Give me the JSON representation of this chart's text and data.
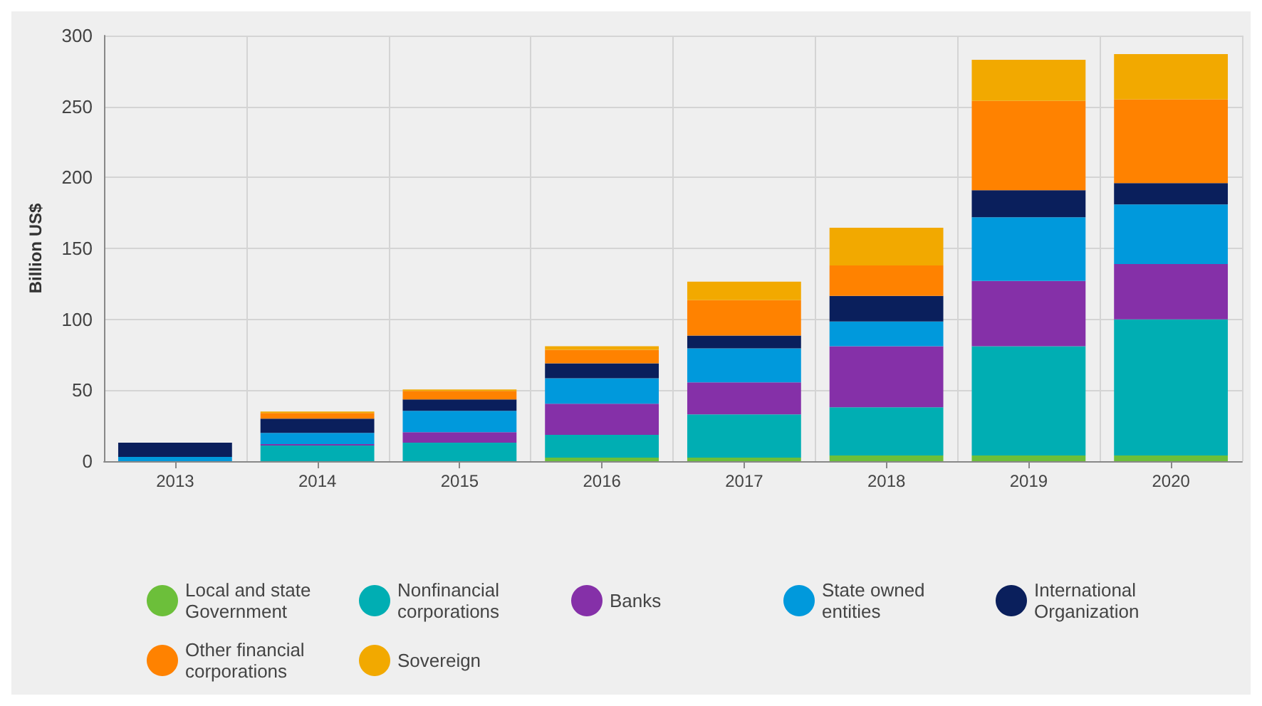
{
  "chart_data": {
    "type": "bar",
    "stacked": true,
    "ylabel": "Billion US$",
    "categories": [
      "2013",
      "2014",
      "2015",
      "2016",
      "2017",
      "2018",
      "2019",
      "2020"
    ],
    "series": [
      {
        "name": "Local and state Government",
        "color": "#6cbf3a",
        "values": [
          0,
          0,
          0,
          2.5,
          2.5,
          4,
          4,
          4
        ]
      },
      {
        "name": "Nonfinancial corporations",
        "color": "#00aeb3",
        "values": [
          0,
          11,
          13,
          16,
          30.5,
          34,
          77,
          96
        ]
      },
      {
        "name": "Banks",
        "color": "#8530a8",
        "values": [
          0,
          1,
          7.5,
          22,
          22.5,
          43,
          46,
          39
        ]
      },
      {
        "name": "State owned entities",
        "color": "#0099dc",
        "values": [
          3,
          8,
          15,
          18,
          24,
          17.5,
          45,
          42
        ]
      },
      {
        "name": "International Organization",
        "color": "#0a1f5c",
        "values": [
          10,
          10,
          8,
          10.5,
          9,
          18,
          19,
          15
        ]
      },
      {
        "name": "Other financial corporations",
        "color": "#ff8200",
        "values": [
          0,
          4,
          6,
          9.5,
          25,
          21.5,
          63,
          59
        ]
      },
      {
        "name": "Sovereign",
        "color": "#f2a900",
        "values": [
          0,
          1,
          1,
          2.5,
          13,
          26.5,
          29,
          32
        ]
      }
    ],
    "ylim": [
      0,
      300
    ],
    "yticks": [
      0,
      50,
      100,
      150,
      200,
      250,
      300
    ],
    "grid": true,
    "legend": "bottom"
  }
}
